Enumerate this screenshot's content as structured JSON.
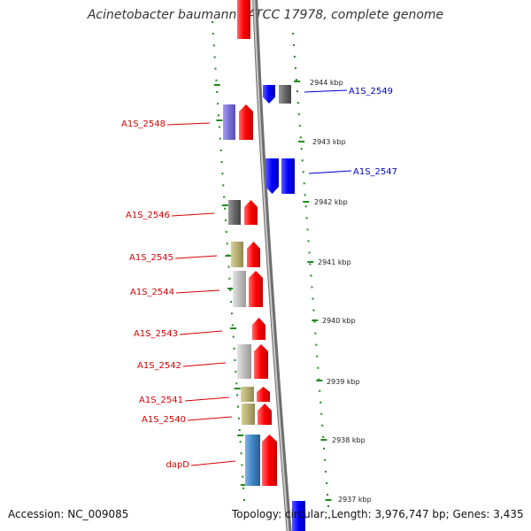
{
  "title": "Acinetobacter baumannii ATCC 17978, complete genome",
  "footer": {
    "accession": "Accession: NC_009085",
    "topology": "Topology: circular; Length: 3,976,747 bp; Genes: 3,435"
  },
  "colors": {
    "forward_label": "#d40000",
    "reverse_label": "#0000cc",
    "tick": "#1f8a1f",
    "backbone": "#8c8c8c"
  },
  "scale_labels": [
    "2944 kbp",
    "2943 kbp",
    "2942 kbp",
    "2941 kbp",
    "2940 kbp",
    "2939 kbp",
    "2938 kbp",
    "2937 kbp"
  ],
  "genes": [
    {
      "label": "A1S_2549",
      "strand": "reverse",
      "label_color": "#0000cc"
    },
    {
      "label": "A1S_2548",
      "strand": "forward",
      "label_color": "#d40000"
    },
    {
      "label": "A1S_2547",
      "strand": "reverse",
      "label_color": "#0000cc"
    },
    {
      "label": "A1S_2546",
      "strand": "forward",
      "label_color": "#d40000"
    },
    {
      "label": "A1S_2545",
      "strand": "forward",
      "label_color": "#d40000"
    },
    {
      "label": "A1S_2544",
      "strand": "forward",
      "label_color": "#d40000"
    },
    {
      "label": "A1S_2543",
      "strand": "forward",
      "label_color": "#d40000"
    },
    {
      "label": "A1S_2542",
      "strand": "forward",
      "label_color": "#d40000"
    },
    {
      "label": "A1S_2541",
      "strand": "forward",
      "label_color": "#d40000"
    },
    {
      "label": "A1S_2540",
      "strand": "forward",
      "label_color": "#d40000"
    },
    {
      "label": "dapD",
      "strand": "forward",
      "label_color": "#d40000"
    }
  ],
  "feature_colors": {
    "cds_forward": "#ff0000",
    "cds_reverse": "#0000ff",
    "cog_purple": "#7b6fd6",
    "cog_gray": "#666666",
    "cog_khaki": "#b5ad72",
    "cog_lightgray": "#bdbdbd",
    "cog_steelblue": "#3f84c4"
  }
}
